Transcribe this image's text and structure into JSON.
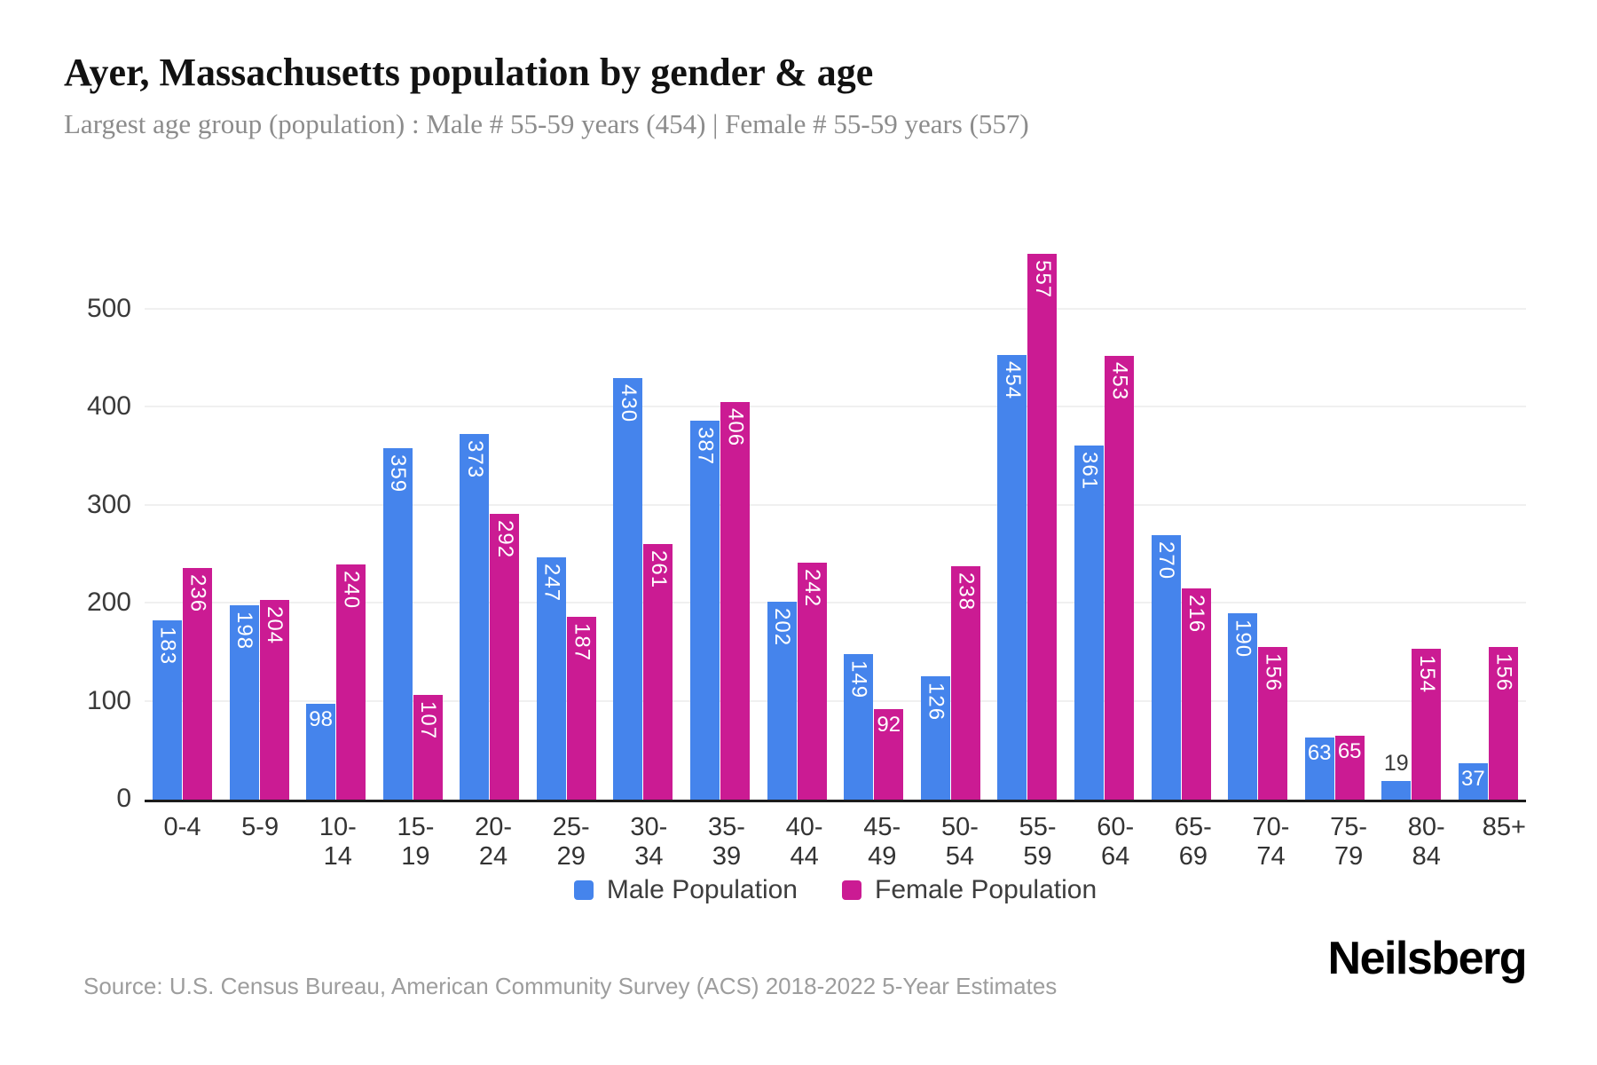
{
  "title": "Ayer, Massachusetts population by gender & age",
  "subtitle": "Largest age group (population) : Male # 55-59 years (454) | Female # 55-59 years (557)",
  "source": "Source: U.S. Census Bureau, American Community Survey (ACS) 2018-2022 5-Year Estimates",
  "brand": "Neilsberg",
  "colors": {
    "male": "#4584ec",
    "female": "#cb1b93",
    "grid": "#f0f0f0",
    "axis_line": "#1c1c1c",
    "bar_value_label": "#ffffff",
    "bar_value_label_outside": "#3a3a3a",
    "tick_label": "#3a3a3a",
    "title": "#121212",
    "subtitle": "#8c8c8c",
    "source": "#9d9d9d"
  },
  "legend": [
    {
      "label": "Male Population",
      "color": "#4584ec"
    },
    {
      "label": "Female Population",
      "color": "#cb1b93"
    }
  ],
  "chart_data": {
    "type": "bar",
    "title": "Ayer, Massachusetts population by gender & age",
    "subtitle": "Largest age group (population) : Male # 55-59 years (454) | Female # 55-59 years (557)",
    "categories": [
      "0-4",
      "5-9",
      "10-14",
      "15-19",
      "20-24",
      "25-29",
      "30-34",
      "35-39",
      "40-44",
      "45-49",
      "50-54",
      "55-59",
      "60-64",
      "65-69",
      "70-74",
      "75-79",
      "80-84",
      "85+"
    ],
    "series": [
      {
        "name": "Male Population",
        "color": "#4584ec",
        "values": [
          183,
          198,
          98,
          359,
          373,
          247,
          430,
          387,
          202,
          149,
          126,
          454,
          361,
          270,
          190,
          63,
          19,
          37
        ]
      },
      {
        "name": "Female Population",
        "color": "#cb1b93",
        "values": [
          236,
          204,
          240,
          107,
          292,
          187,
          261,
          406,
          242,
          92,
          238,
          557,
          453,
          216,
          156,
          65,
          154,
          156
        ]
      }
    ],
    "xlabel": "",
    "ylabel": "",
    "yticks": [
      0,
      100,
      200,
      300,
      400,
      500
    ],
    "ylim": [
      0,
      557
    ],
    "grid": true,
    "legend_position": "bottom",
    "bar_value_labels": true
  }
}
